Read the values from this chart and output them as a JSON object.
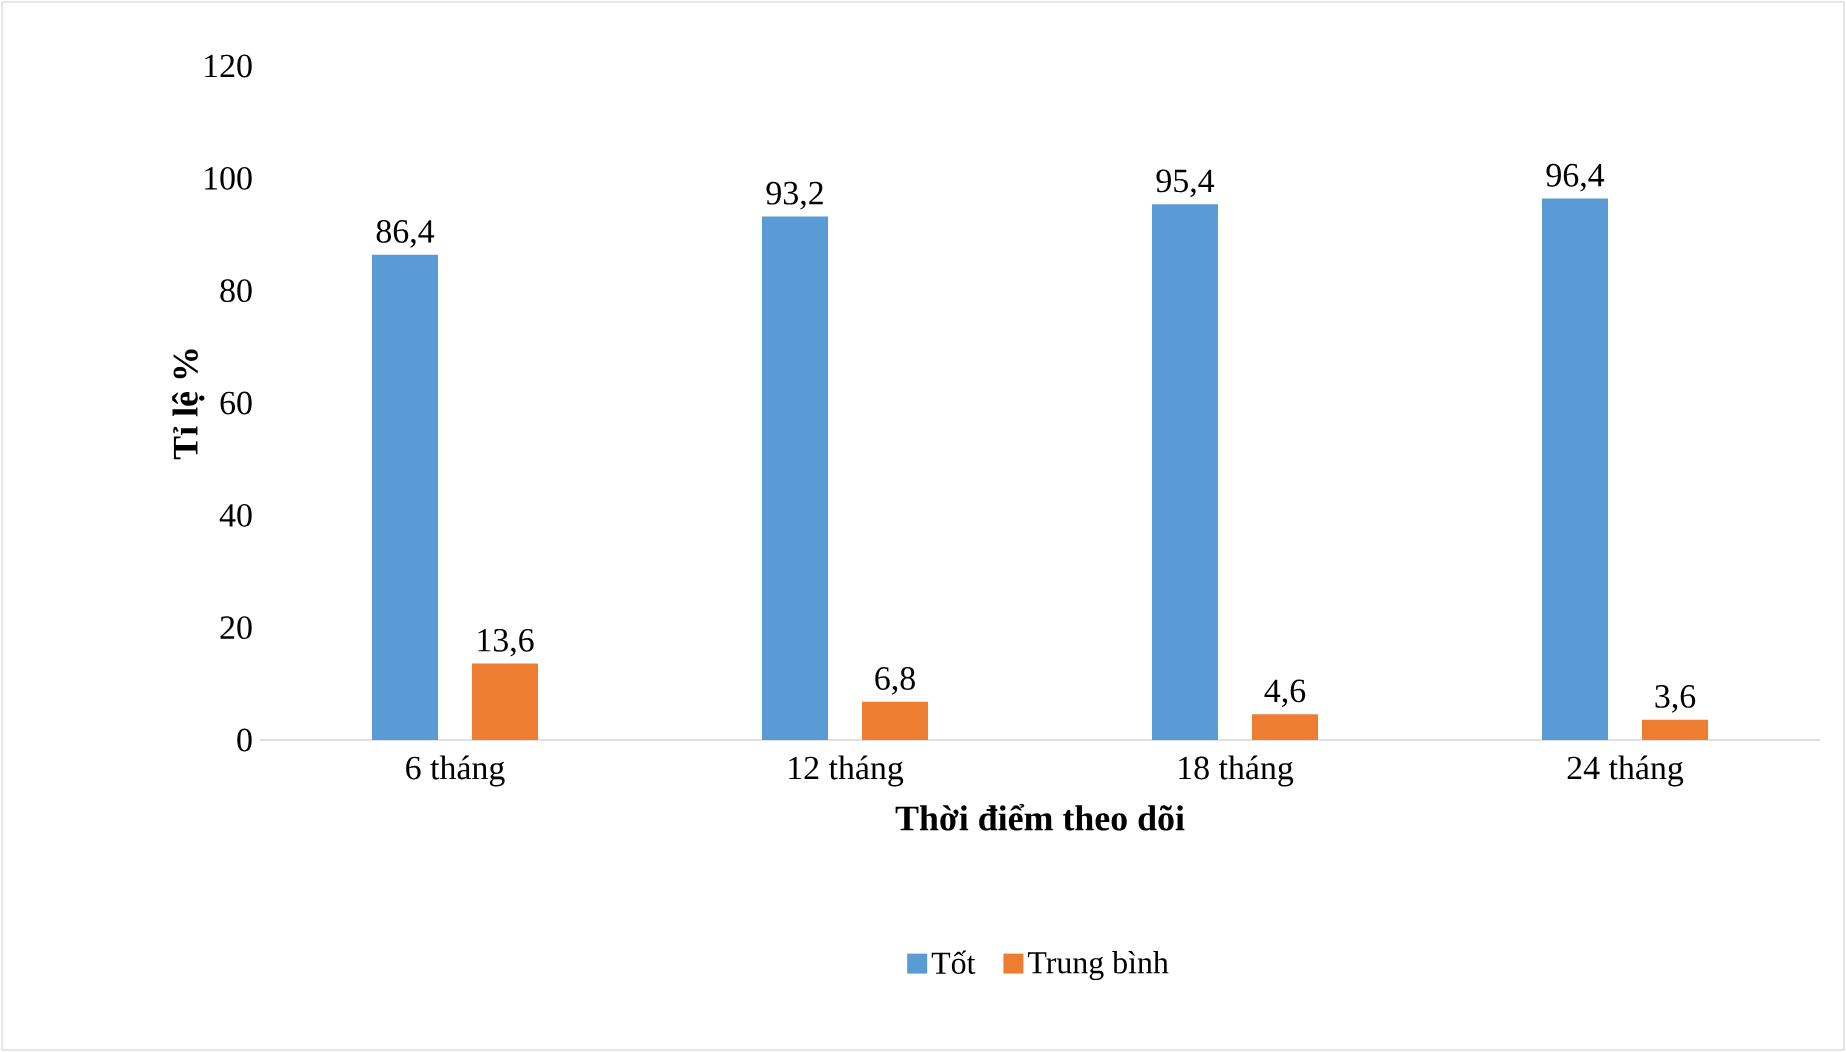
{
  "chart_data": {
    "type": "bar",
    "xlabel": "Thời điểm theo dõi",
    "ylabel": "Tỉ lệ %",
    "categories": [
      "6 tháng",
      "12 tháng",
      "18 tháng",
      "24 tháng"
    ],
    "series": [
      {
        "name": "Tốt",
        "color": "#5b9bd5",
        "values": [
          86.4,
          93.2,
          95.4,
          96.4
        ],
        "value_labels": [
          "86,4",
          "93,2",
          "95,4",
          "96,4"
        ]
      },
      {
        "name": "Trung bình",
        "color": "#ed7d31",
        "values": [
          13.6,
          6.8,
          4.6,
          3.6
        ],
        "value_labels": [
          "13,6",
          "6,8",
          "4,6",
          "3,6"
        ]
      }
    ],
    "ylim": [
      0,
      120
    ],
    "yticks": [
      0,
      20,
      40,
      60,
      80,
      100,
      120
    ],
    "legend": "bottom"
  }
}
